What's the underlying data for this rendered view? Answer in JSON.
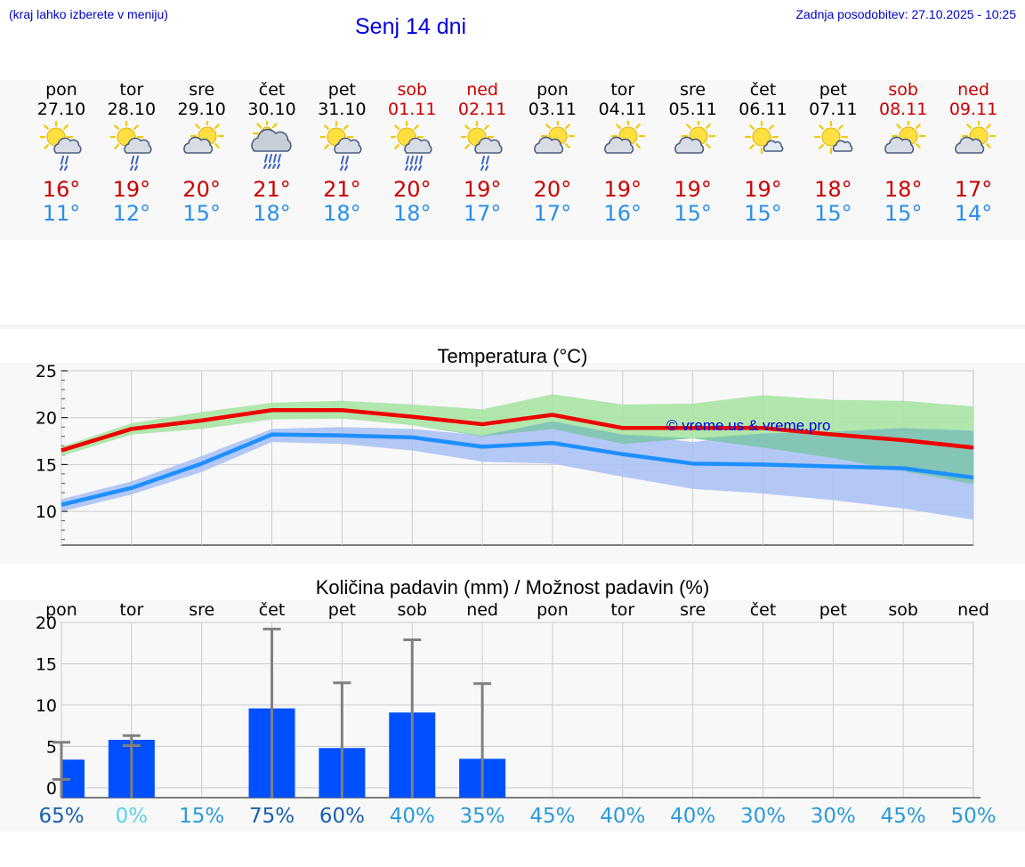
{
  "header": {
    "hint": "(kraj lahko izberete v meniju)",
    "title": "Senj 14 dni",
    "updated": "Zadnja posodobitev: 27.10.2025 - 10:25"
  },
  "days": [
    {
      "name": "pon",
      "date": "27.10",
      "weekend": false,
      "icon": "sun-cloud-rain-icon",
      "tmax": "16°",
      "tmin": "11°"
    },
    {
      "name": "tor",
      "date": "28.10",
      "weekend": false,
      "icon": "sun-cloud-rain-icon",
      "tmax": "19°",
      "tmin": "12°"
    },
    {
      "name": "sre",
      "date": "29.10",
      "weekend": false,
      "icon": "partly-cloudy-icon",
      "tmax": "20°",
      "tmin": "15°"
    },
    {
      "name": "čet",
      "date": "30.10",
      "weekend": false,
      "icon": "cloudy-rain-icon",
      "tmax": "21°",
      "tmin": "18°"
    },
    {
      "name": "pet",
      "date": "31.10",
      "weekend": false,
      "icon": "sun-cloud-rain-icon",
      "tmax": "21°",
      "tmin": "18°"
    },
    {
      "name": "sob",
      "date": "01.11",
      "weekend": true,
      "icon": "sun-cloud-heavy-rain-icon",
      "tmax": "20°",
      "tmin": "18°"
    },
    {
      "name": "ned",
      "date": "02.11",
      "weekend": true,
      "icon": "sun-cloud-rain-icon",
      "tmax": "19°",
      "tmin": "17°"
    },
    {
      "name": "pon",
      "date": "03.11",
      "weekend": false,
      "icon": "partly-cloudy-icon",
      "tmax": "20°",
      "tmin": "17°"
    },
    {
      "name": "tor",
      "date": "04.11",
      "weekend": false,
      "icon": "partly-cloudy-icon",
      "tmax": "19°",
      "tmin": "16°"
    },
    {
      "name": "sre",
      "date": "05.11",
      "weekend": false,
      "icon": "partly-cloudy-icon",
      "tmax": "19°",
      "tmin": "15°"
    },
    {
      "name": "čet",
      "date": "06.11",
      "weekend": false,
      "icon": "sun-small-cloud-icon",
      "tmax": "19°",
      "tmin": "15°"
    },
    {
      "name": "pet",
      "date": "07.11",
      "weekend": false,
      "icon": "sun-small-cloud-icon",
      "tmax": "18°",
      "tmin": "15°"
    },
    {
      "name": "sob",
      "date": "08.11",
      "weekend": true,
      "icon": "partly-cloudy-icon",
      "tmax": "18°",
      "tmin": "15°"
    },
    {
      "name": "ned",
      "date": "09.11",
      "weekend": true,
      "icon": "partly-cloudy-icon",
      "tmax": "17°",
      "tmin": "14°"
    }
  ],
  "colors": {
    "max_line": "#ee0000",
    "min_line": "#1e90ff",
    "max_band": "#a8e4a4",
    "min_band": "#a8c0f4",
    "overlap_band": "#7cc4a8",
    "bar": "#0050ff",
    "error_bar": "#808080",
    "pct_colors": [
      "#1a5fb0",
      "#5ad2e8",
      "#2a9ad8",
      "#1a5fb0",
      "#1a5fb0",
      "#2a9ad8",
      "#2a9ad8",
      "#2a9ad8",
      "#2a9ad8",
      "#2a9ad8",
      "#2a9ad8",
      "#2a9ad8",
      "#2a9ad8",
      "#2a9ad8"
    ]
  },
  "chart_data": [
    {
      "type": "line",
      "title": "Temperatura (°C)",
      "watermark": "© vreme.us & vreme.pro",
      "ylim": [
        6.4,
        25
      ],
      "yticks": [
        10,
        15,
        20,
        25
      ],
      "grid": true,
      "x_count": 14,
      "series": [
        {
          "role": "max",
          "values": [
            16.5,
            18.8,
            19.7,
            20.8,
            20.8,
            20.1,
            19.3,
            20.3,
            18.9,
            18.9,
            18.9,
            18.2,
            17.6,
            16.8
          ]
        },
        {
          "role": "min",
          "values": [
            10.7,
            12.5,
            15.1,
            18.2,
            18.1,
            17.9,
            16.9,
            17.3,
            16.1,
            15.1,
            15.0,
            14.8,
            14.6,
            13.6
          ]
        },
        {
          "role": "max-band",
          "upper": [
            16.9,
            19.4,
            20.6,
            21.6,
            21.8,
            21.4,
            20.9,
            22.5,
            21.4,
            21.5,
            22.4,
            21.9,
            21.8,
            21.2
          ],
          "lower": [
            15.9,
            18.2,
            18.8,
            19.8,
            19.9,
            19.2,
            18.0,
            18.8,
            17.2,
            17.8,
            16.8,
            15.7,
            14.3,
            12.9
          ]
        },
        {
          "role": "min-band",
          "upper": [
            11.3,
            13.2,
            15.9,
            18.8,
            19.0,
            18.8,
            18.1,
            19.6,
            18.2,
            17.4,
            18.3,
            18.5,
            18.9,
            18.6
          ],
          "lower": [
            10.0,
            11.8,
            14.2,
            17.4,
            17.2,
            16.5,
            15.3,
            15.1,
            13.7,
            12.4,
            11.9,
            11.2,
            10.3,
            9.1
          ]
        }
      ]
    },
    {
      "type": "bar",
      "title": "Količina padavin (mm) / Možnost padavin (%)",
      "categories": [
        "pon",
        "tor",
        "sre",
        "čet",
        "pet",
        "sob",
        "ned",
        "pon",
        "tor",
        "sre",
        "čet",
        "pet",
        "sob",
        "ned"
      ],
      "values": [
        3.4,
        5.8,
        0,
        9.6,
        4.8,
        9.1,
        3.5,
        0,
        0,
        0,
        0,
        0,
        0,
        0
      ],
      "error_upper": [
        5.5,
        6.3,
        0,
        19.2,
        12.7,
        17.9,
        12.6,
        0,
        0,
        0,
        0,
        0,
        0,
        0
      ],
      "error_lower": [
        1.0,
        5.1,
        0,
        0,
        0,
        0,
        0,
        0,
        0,
        0,
        0,
        0,
        0,
        0
      ],
      "ylim": [
        -1.2,
        20
      ],
      "yticks": [
        0,
        5,
        10,
        15,
        20
      ],
      "grid": true,
      "probability": [
        "65%",
        "0%",
        "15%",
        "75%",
        "60%",
        "40%",
        "35%",
        "45%",
        "40%",
        "40%",
        "30%",
        "30%",
        "45%",
        "50%"
      ]
    }
  ]
}
